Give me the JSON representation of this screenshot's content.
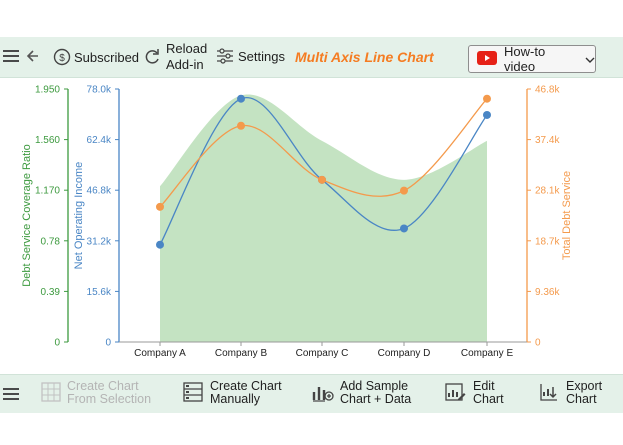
{
  "toolbar": {
    "subscribed_label": "Subscribed",
    "reload_line1": "Reload",
    "reload_line2": "Add-in",
    "settings_label": "Settings",
    "chart_title": "Multi Axis Line Chart",
    "howto_label": "How-to video"
  },
  "bottombar": {
    "create_selection_line1": "Create Chart",
    "create_selection_line2": "From Selection",
    "create_manual_line1": "Create Chart",
    "create_manual_line2": "Manually",
    "add_sample_line1": "Add Sample",
    "add_sample_line2": "Chart + Data",
    "edit_line1": "Edit",
    "edit_line2": "Chart",
    "export_line1": "Export",
    "export_line2": "Chart"
  },
  "colors": {
    "area": "#c4e3c2",
    "net_operating_income": "#4a86c5",
    "total_debt_service": "#f49a4c",
    "left_axis": "#3d9a3f",
    "accent_title": "#f57c22"
  },
  "chart_data": {
    "type": "line",
    "categories": [
      "Company A",
      "Company B",
      "Company C",
      "Company D",
      "Company E"
    ],
    "series": [
      {
        "name": "Debt Service Coverage Ratio",
        "type": "area",
        "axis": "left-outer",
        "values": [
          1.2,
          1.9,
          1.55,
          1.25,
          1.55
        ]
      },
      {
        "name": "Net Operating Income",
        "type": "line",
        "axis": "left-inner",
        "values": [
          30000,
          75000,
          50000,
          35000,
          70000
        ]
      },
      {
        "name": "Total Debt Service",
        "type": "line",
        "axis": "right",
        "values": [
          25000,
          40000,
          30000,
          28000,
          45000
        ]
      }
    ],
    "axes": {
      "left_outer": {
        "label": "Debt Service Coverage Ratio",
        "ticks": [
          "0",
          "0.39",
          "0.78",
          "1.170",
          "1.560",
          "1.950"
        ],
        "range": [
          0,
          1.95
        ]
      },
      "left_inner": {
        "label": "Net Operating Income",
        "ticks": [
          "0",
          "15.6k",
          "31.2k",
          "46.8k",
          "62.4k",
          "78.0k"
        ],
        "range": [
          0,
          78000
        ]
      },
      "right": {
        "label": "Total Debt Service",
        "ticks": [
          "0",
          "9.36k",
          "18.7k",
          "28.1k",
          "37.4k",
          "46.8k"
        ],
        "range": [
          0,
          46800
        ]
      }
    },
    "grid": false
  }
}
